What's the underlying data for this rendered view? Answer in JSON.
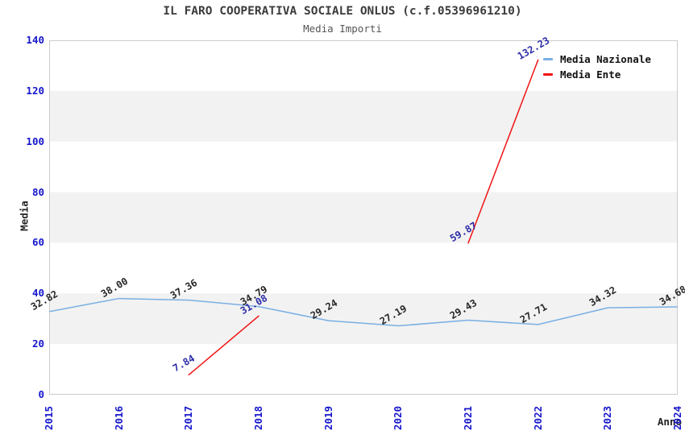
{
  "chart_data": {
    "type": "line",
    "title": "IL FARO COOPERATIVA SOCIALE ONLUS (c.f.05396961210)",
    "subtitle": "Media Importi",
    "xlabel": "Anno",
    "ylabel": "Media",
    "x": [
      "2015",
      "2016",
      "2017",
      "2018",
      "2019",
      "2020",
      "2021",
      "2022",
      "2023",
      "2024"
    ],
    "ylim": [
      0,
      140
    ],
    "ytick_step": 20,
    "grid": "alternating-horizontal-bands",
    "band_ranges": [
      [
        20,
        40
      ],
      [
        60,
        80
      ],
      [
        100,
        120
      ]
    ],
    "band_color": "#f2f2f2",
    "plot_border_color": "#cccccc",
    "tick_label_color": "#1616cc",
    "legend_position": "top-right-inside",
    "series": [
      {
        "name": "Media Nazionale",
        "color": "#7aafe3",
        "label_color": "#262626",
        "values": [
          32.82,
          38.0,
          37.36,
          34.79,
          29.24,
          27.19,
          29.43,
          27.71,
          34.32,
          34.68
        ],
        "labels": [
          "32.82",
          "38.00",
          "37.36",
          "34.79",
          "29.24",
          "27.19",
          "29.43",
          "27.71",
          "34.32",
          "34.68"
        ]
      },
      {
        "name": "Media Ente",
        "color": "#f01414",
        "label_color": "#2b2ba6",
        "values": [
          null,
          null,
          7.84,
          31.08,
          null,
          null,
          59.87,
          132.23,
          null,
          null
        ],
        "labels": [
          null,
          null,
          "7.84",
          "31.08",
          null,
          null,
          "59.87",
          "132.23",
          null,
          null
        ]
      }
    ]
  }
}
